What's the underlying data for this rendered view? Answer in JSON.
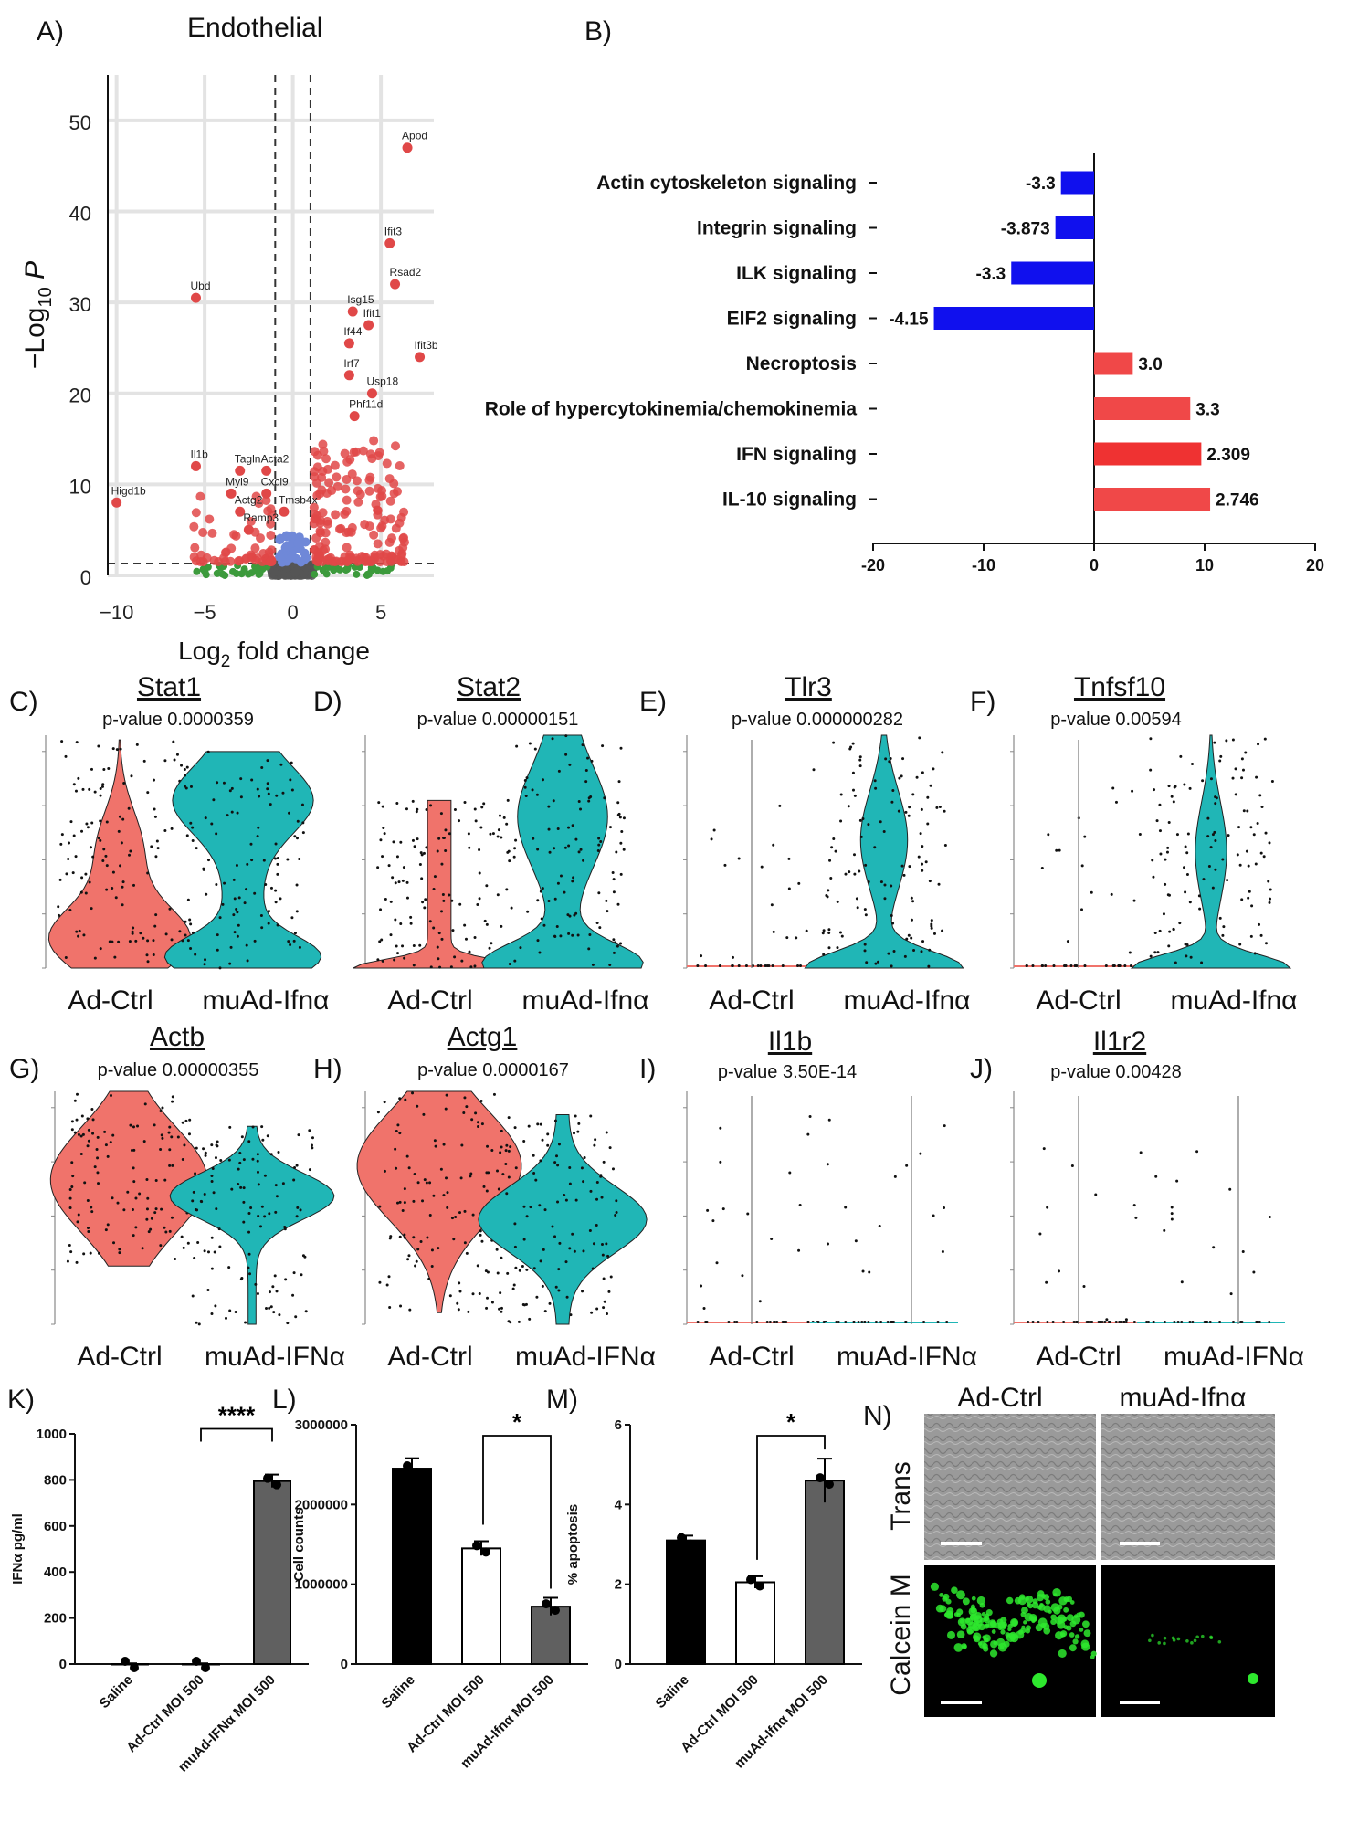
{
  "panels": {
    "a": {
      "label": "A)",
      "title": "Endothelial"
    },
    "b": {
      "label": "B)"
    },
    "k": {
      "label": "K)"
    },
    "l": {
      "label": "L)"
    },
    "m": {
      "label": "M)"
    },
    "n": {
      "label": "N)"
    }
  },
  "colors": {
    "red": "#f0736b",
    "teal": "#20b6b6",
    "blue": "#1010ee",
    "bar_red": "#ef3232",
    "dark": "#111111",
    "grey": "#666666"
  },
  "chart_data": [
    {
      "id": "A",
      "type": "scatter",
      "title": "Endothelial",
      "xlabel": "Log2 fold change",
      "ylabel": "-Log10 P",
      "xlim": [
        -10.5,
        8
      ],
      "ylim": [
        0,
        55
      ],
      "xticks": [
        "-10",
        "-5",
        "0",
        "5"
      ],
      "yticks": [
        "0",
        "10",
        "20",
        "30",
        "40",
        "50"
      ],
      "labeled_genes": [
        {
          "gene": "Apod",
          "x": 6.5,
          "y": 47
        },
        {
          "gene": "Ifit3",
          "x": 5.5,
          "y": 36.5
        },
        {
          "gene": "Rsad2",
          "x": 5.8,
          "y": 32
        },
        {
          "gene": "Isg15",
          "x": 3.4,
          "y": 29
        },
        {
          "gene": "Ubd",
          "x": -5.5,
          "y": 30.5
        },
        {
          "gene": "Ifit1",
          "x": 4.3,
          "y": 27.5
        },
        {
          "gene": "If44",
          "x": 3.2,
          "y": 25.5
        },
        {
          "gene": "Ifit3b",
          "x": 7.2,
          "y": 24
        },
        {
          "gene": "Irf7",
          "x": 3.2,
          "y": 22
        },
        {
          "gene": "Usp18",
          "x": 4.5,
          "y": 20
        },
        {
          "gene": "Phf11d",
          "x": 3.5,
          "y": 17.5
        },
        {
          "gene": "Il1b",
          "x": -5.5,
          "y": 12
        },
        {
          "gene": "Tagln",
          "x": -3.0,
          "y": 11.5
        },
        {
          "gene": "Acta2",
          "x": -1.5,
          "y": 11.5
        },
        {
          "gene": "Higd1b",
          "x": -10,
          "y": 8
        },
        {
          "gene": "Myl9",
          "x": -3.5,
          "y": 9
        },
        {
          "gene": "Cxcl9",
          "x": -1.5,
          "y": 9
        },
        {
          "gene": "Actg2",
          "x": -3.0,
          "y": 7
        },
        {
          "gene": "Tmsb4x",
          "x": -0.5,
          "y": 7
        },
        {
          "gene": "Ramp3",
          "x": -2.5,
          "y": 5
        }
      ]
    },
    {
      "id": "B",
      "type": "bar",
      "orientation": "horizontal",
      "categories": [
        "Actin cytoskeleton signaling",
        "Integrin signaling",
        "ILK signaling",
        "EIF2 signaling",
        "Necroptosis",
        "Role of hypercytokinemia/chemokinemia",
        "IFN signaling",
        "IL-10 signaling"
      ],
      "values": [
        -3.0,
        -3.5,
        -7.5,
        -14.5,
        3.5,
        8.7,
        9.7,
        10.5
      ],
      "value_labels": [
        "-3.3",
        "-3.873",
        "-3.3",
        "-4.15",
        "3.0",
        "3.3",
        "2.309",
        "2.746"
      ],
      "xlim": [
        -20,
        20
      ],
      "xticks": [
        "-20",
        "-10",
        "0",
        "10",
        "20"
      ]
    },
    {
      "id": "C",
      "type": "violin",
      "gene": "Stat1",
      "pvalue": "p-value 0.0000359",
      "categories": [
        "Ad-Ctrl",
        "muAd-Ifnα"
      ]
    },
    {
      "id": "D",
      "type": "violin",
      "gene": "Stat2",
      "pvalue": "p-value 0.00000151",
      "categories": [
        "Ad-Ctrl",
        "muAd-Ifnα"
      ]
    },
    {
      "id": "E",
      "type": "violin",
      "gene": "Tlr3",
      "pvalue": "p-value 0.000000282",
      "categories": [
        "Ad-Ctrl",
        "muAd-Ifnα"
      ]
    },
    {
      "id": "F",
      "type": "violin",
      "gene": "Tnfsf10",
      "pvalue": "p-value 0.00594",
      "categories": [
        "Ad-Ctrl",
        "muAd-Ifnα"
      ]
    },
    {
      "id": "G",
      "type": "violin",
      "gene": "Actb",
      "pvalue": "p-value 0.00000355",
      "categories": [
        "Ad-Ctrl",
        "muAd-IFNα"
      ]
    },
    {
      "id": "H",
      "type": "violin",
      "gene": "Actg1",
      "pvalue": "p-value 0.0000167",
      "categories": [
        "Ad-Ctrl",
        "muAd-IFNα"
      ]
    },
    {
      "id": "I",
      "type": "violin",
      "gene": "Il1b",
      "pvalue": "p-value 3.50E-14",
      "categories": [
        "Ad-Ctrl",
        "muAd-IFNα"
      ]
    },
    {
      "id": "J",
      "type": "violin",
      "gene": "Il1r2",
      "pvalue": "p-value 0.00428",
      "categories": [
        "Ad-Ctrl",
        "muAd-IFNα"
      ]
    },
    {
      "id": "K",
      "type": "bar",
      "categories": [
        "Saline",
        "Ad-Ctrl MOI 500",
        "muAd-IFNα MOI 500"
      ],
      "values": [
        0,
        0,
        795
      ],
      "errors": [
        3,
        3,
        28
      ],
      "ylabel": "IFNα pg/ml",
      "ylim": [
        0,
        1000
      ],
      "yticks": [
        "0",
        "200",
        "400",
        "600",
        "800",
        "1000"
      ],
      "significance": "****"
    },
    {
      "id": "L",
      "type": "bar",
      "categories": [
        "Saline",
        "Ad-Ctrl MOI 500",
        "muAd-Ifnα MOI 500"
      ],
      "values": [
        2450000,
        1450000,
        720000
      ],
      "errors": [
        130000,
        90000,
        110000
      ],
      "ylabel": "Cell counts",
      "ylim": [
        0,
        3000000
      ],
      "yticks": [
        "0",
        "1000000",
        "2000000",
        "3000000"
      ],
      "significance": "*"
    },
    {
      "id": "M",
      "type": "bar",
      "categories": [
        "Saline",
        "Ad-Ctrl MOI 500",
        "muAd-Ifnα MOI 500"
      ],
      "values": [
        3.1,
        2.05,
        4.6
      ],
      "errors": [
        0.12,
        0.15,
        0.55
      ],
      "ylabel": "% apoptosis",
      "ylim": [
        0,
        6
      ],
      "yticks": [
        "0",
        "2",
        "4",
        "6"
      ],
      "significance": "*"
    }
  ],
  "micro": {
    "cols": [
      "Ad-Ctrl",
      "muAd-Ifnα"
    ],
    "rows": [
      "Trans",
      "Calcein M"
    ]
  }
}
